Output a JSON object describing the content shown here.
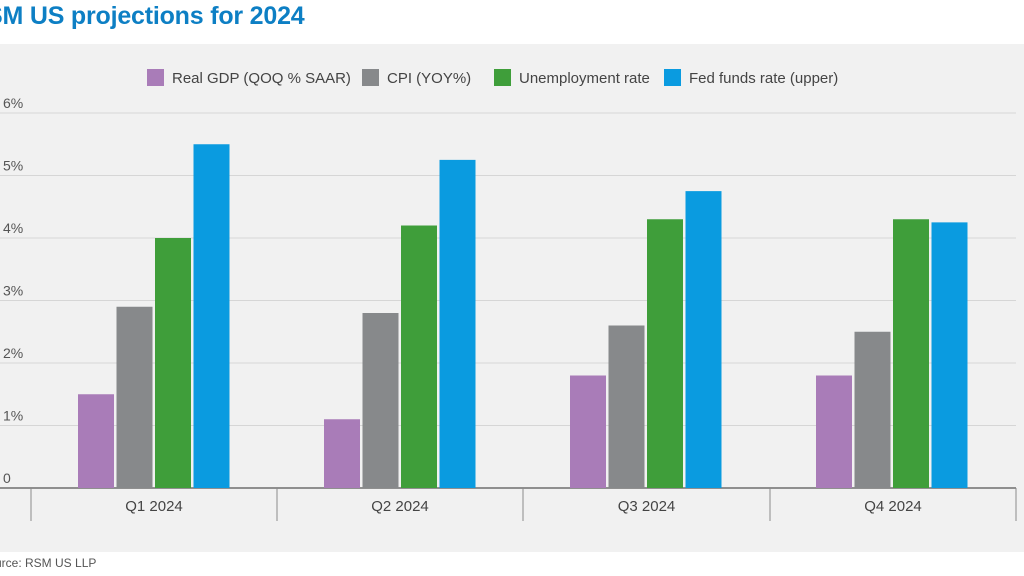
{
  "title": "SM US projections for 2024",
  "source": "urce: RSM US LLP",
  "chart_data": {
    "type": "bar",
    "title": "SM US projections for 2024",
    "categories": [
      "Q1 2024",
      "Q2 2024",
      "Q3 2024",
      "Q4 2024"
    ],
    "series": [
      {
        "name": "Real GDP (QOQ % SAAR)",
        "color": "#a97cb8",
        "values": [
          1.5,
          1.1,
          1.8,
          1.8
        ]
      },
      {
        "name": "CPI (YOY%)",
        "color": "#87898b",
        "values": [
          2.9,
          2.8,
          2.6,
          2.5
        ]
      },
      {
        "name": "Unemployment rate",
        "color": "#3f9e3a",
        "values": [
          4.0,
          4.2,
          4.3,
          4.3
        ]
      },
      {
        "name": "Fed funds rate (upper)",
        "color": "#0a9be0",
        "values": [
          5.5,
          5.25,
          4.75,
          4.25
        ]
      }
    ],
    "ytick_labels": [
      "0",
      "1%",
      "2%",
      "3%",
      "4%",
      "5%",
      "6%"
    ],
    "ylim": [
      0,
      6
    ],
    "grid": true,
    "legend_position": "top-center"
  }
}
